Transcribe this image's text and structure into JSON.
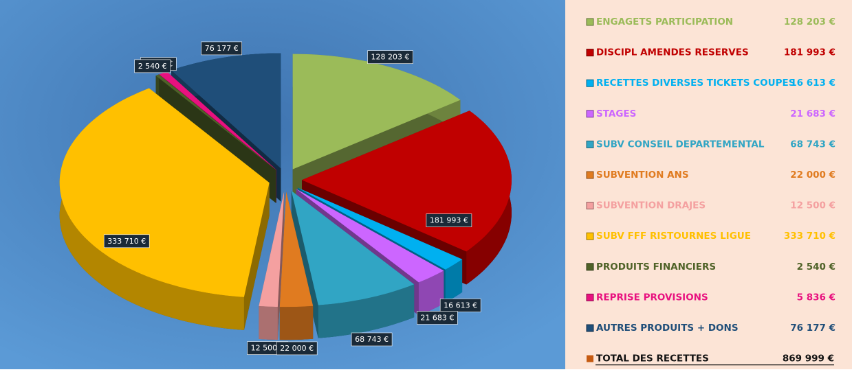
{
  "chart_data": {
    "type": "pie",
    "categories": [
      "ENGAGETS PARTICIPATION",
      "DISCIPL AMENDES RESERVES",
      "RECETTES DIVERSES TICKETS COUPES",
      "STAGES",
      "SUBV CONSEIL DEPARTEMENTAL",
      "SUBVENTION ANS",
      "SUBVENTION DRAJES",
      "SUBV FFF RISTOURNES LIGUE",
      "PRODUITS FINANCIERS",
      "REPRISE PROVISIONS",
      "AUTRES PRODUITS + DONS"
    ],
    "values": [
      128203,
      181993,
      16613,
      21683,
      68743,
      22000,
      12500,
      333710,
      2540,
      5836,
      76177
    ],
    "value_labels": [
      "128 203 €",
      "181 993 €",
      "16 613 €",
      "21 683 €",
      "68 743 €",
      "22 000 €",
      "12 500 €",
      "333 710 €",
      "2 540 €",
      "5 836 €",
      "76 177 €"
    ],
    "colors": [
      "#9bbb59",
      "#c00000",
      "#00b0f0",
      "#cc66ff",
      "#31a5c4",
      "#e07b20",
      "#f4a0a0",
      "#ffc000",
      "#4f6228",
      "#e8117f",
      "#1f4e79"
    ],
    "total": {
      "label": "TOTAL DES RECETTES",
      "value": 869999,
      "value_label": "869 999 €"
    }
  }
}
